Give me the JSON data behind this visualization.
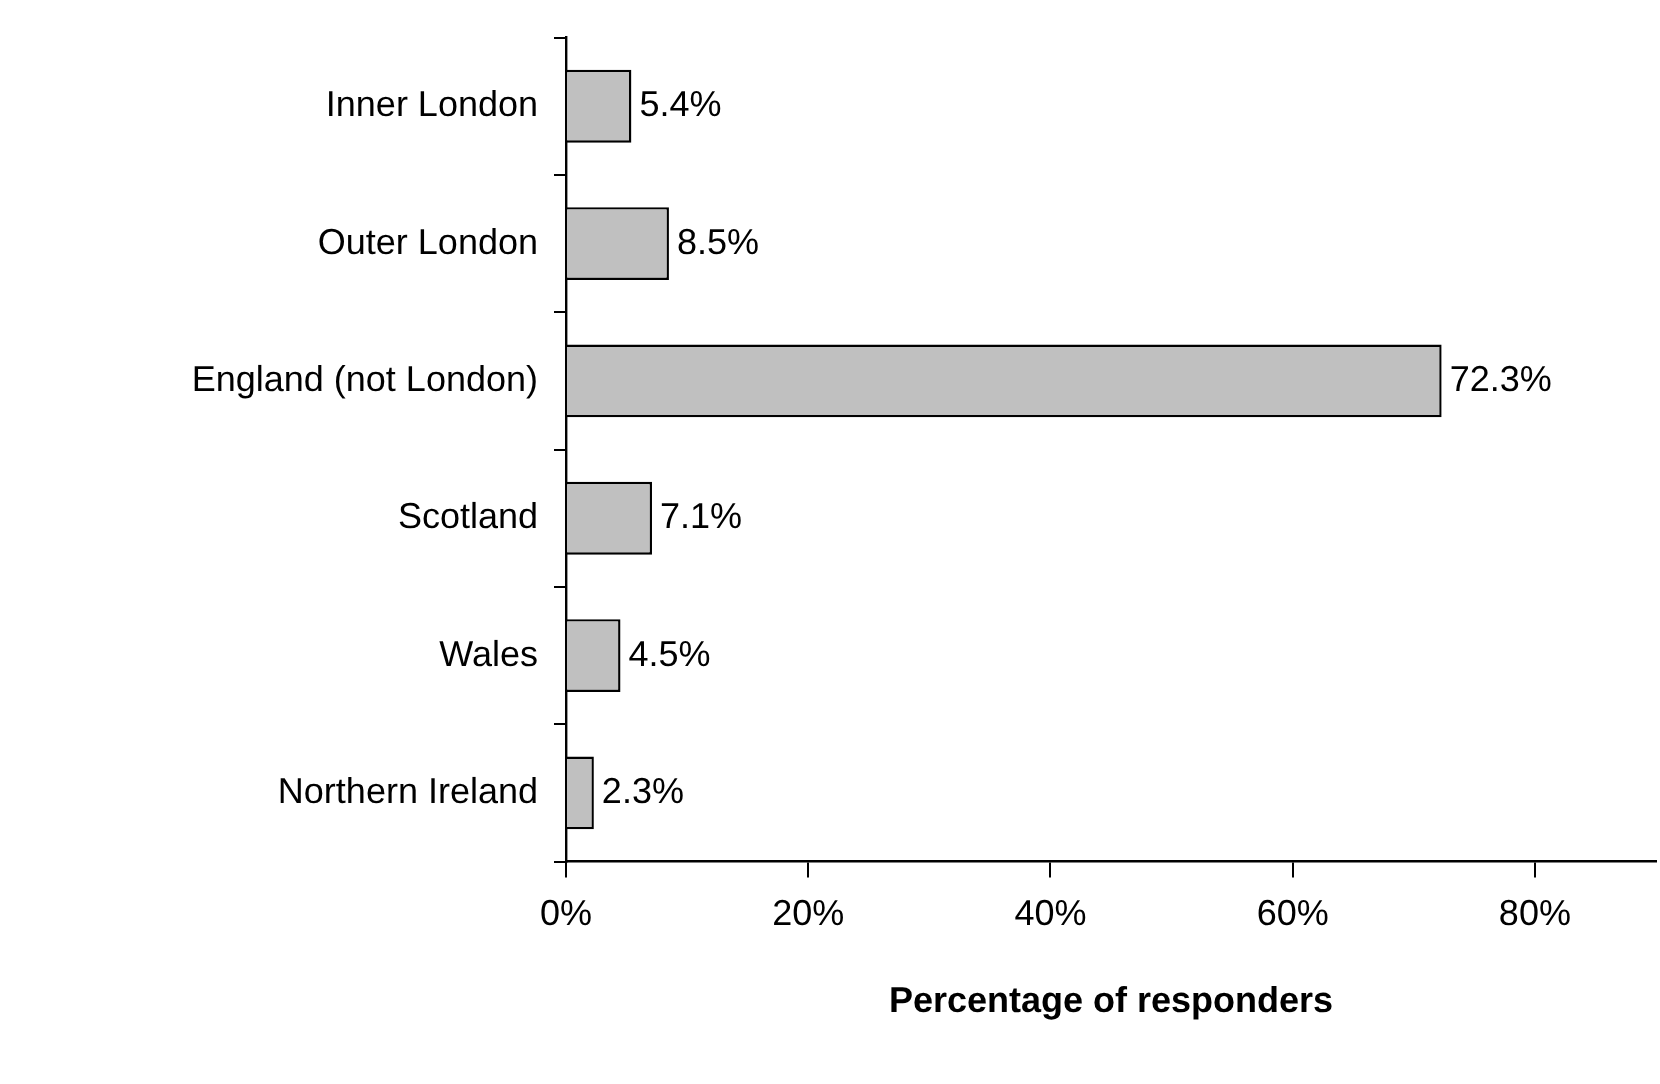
{
  "chart_data": {
    "type": "bar",
    "orientation": "horizontal",
    "xlabel": "Percentage of responders",
    "categories": [
      "Inner London",
      "Outer London",
      "England (not London)",
      "Scotland",
      "Wales",
      "Northern Ireland"
    ],
    "values": [
      5.4,
      8.5,
      72.3,
      7.1,
      4.5,
      2.3
    ],
    "value_labels": [
      "5.4%",
      "8.5%",
      "72.3%",
      "7.1%",
      "4.5%",
      "2.3%"
    ],
    "color": "#c0c0c0",
    "xlim": [
      0,
      90
    ],
    "xticks": [
      {
        "value": 0,
        "label": "0%"
      },
      {
        "value": 20,
        "label": "20%"
      },
      {
        "value": 40,
        "label": "40%"
      },
      {
        "value": 60,
        "label": "60%"
      },
      {
        "value": 80,
        "label": "80%"
      }
    ],
    "grid": false,
    "legend": false
  }
}
